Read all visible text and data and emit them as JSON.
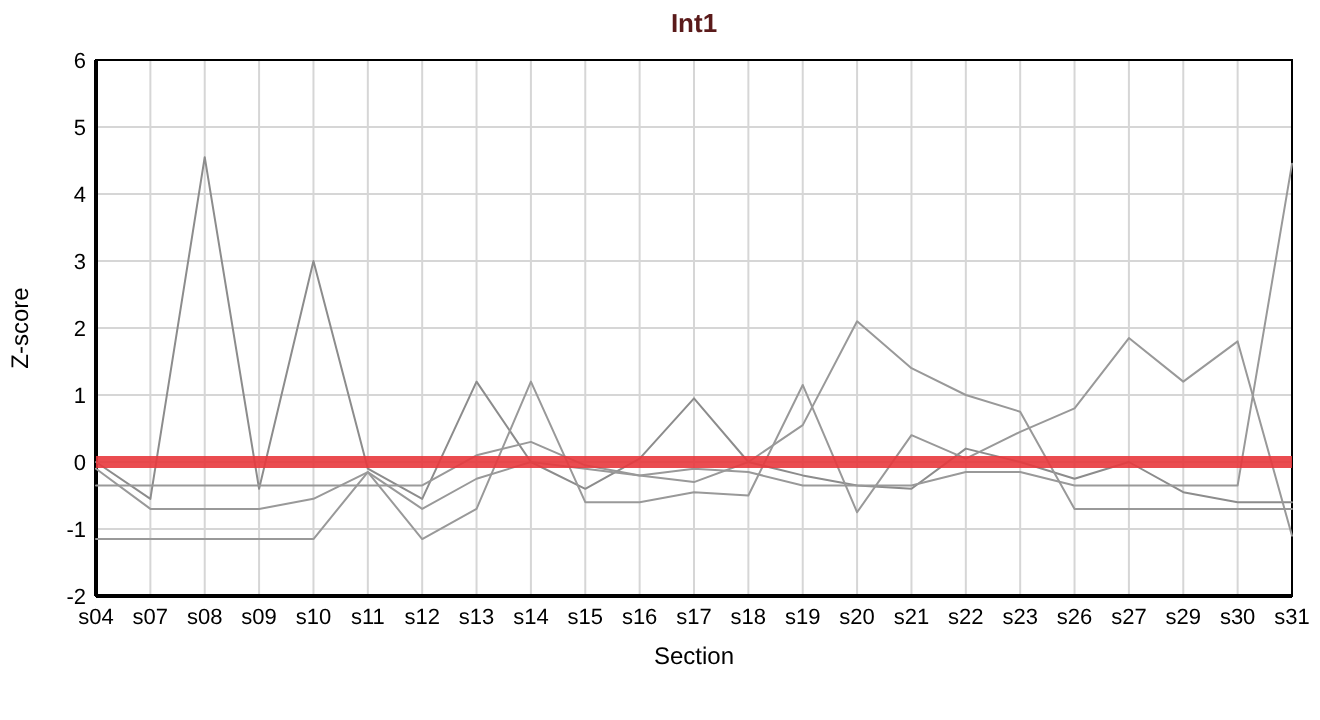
{
  "chart_data": {
    "type": "line",
    "title": "Int1",
    "xlabel": "Section",
    "ylabel": "Z-score",
    "categories": [
      "s04",
      "s07",
      "s08",
      "s09",
      "s10",
      "s11",
      "s12",
      "s13",
      "s14",
      "s15",
      "s16",
      "s17",
      "s18",
      "s19",
      "s20",
      "s21",
      "s22",
      "s23",
      "s26",
      "s27",
      "s29",
      "s30",
      "s31"
    ],
    "series": [
      {
        "color": "#8c8c8c",
        "values": [
          0,
          -0.55,
          4.55,
          -0.4,
          3.0,
          -0.1,
          -0.55,
          1.2,
          0.0,
          -0.4,
          0.05,
          0.95,
          0.0,
          -0.2,
          -0.35,
          -0.4,
          0.2,
          0.0,
          -0.25,
          0.0,
          -0.45,
          -0.6,
          -0.6
        ]
      },
      {
        "color": "#999999",
        "values": [
          -0.35,
          -0.35,
          -0.35,
          -0.35,
          -0.35,
          -0.35,
          -0.35,
          0.1,
          0.3,
          -0.05,
          -0.2,
          -0.1,
          -0.15,
          -0.35,
          -0.35,
          -0.35,
          -0.15,
          -0.15,
          -0.35,
          -0.35,
          -0.35,
          -0.35,
          4.45
        ]
      },
      {
        "color": "#999999",
        "values": [
          -0.1,
          -0.7,
          -0.7,
          -0.7,
          -0.55,
          -0.15,
          -0.7,
          -0.25,
          0.0,
          -0.1,
          -0.2,
          -0.3,
          0.0,
          0.55,
          2.1,
          1.4,
          1.0,
          0.75,
          -0.7,
          -0.7,
          -0.7,
          -0.7,
          -0.7
        ]
      },
      {
        "color": "#999999",
        "values": [
          -1.15,
          -1.15,
          -1.15,
          -1.15,
          -1.15,
          -0.15,
          -1.15,
          -0.7,
          1.2,
          -0.6,
          -0.6,
          -0.45,
          -0.5,
          1.15,
          -0.75,
          0.4,
          0.05,
          0.45,
          0.8,
          1.85,
          1.2,
          1.8,
          -1.1
        ]
      }
    ],
    "ylim": [
      -2,
      6
    ],
    "yticks": [
      -2,
      -1,
      0,
      1,
      2,
      3,
      4,
      5,
      6
    ],
    "grid": true,
    "marker": "none",
    "line_style": "solid",
    "ref_lines": [
      {
        "axis": "y",
        "value": 0,
        "color": "#e8383d"
      }
    ]
  }
}
